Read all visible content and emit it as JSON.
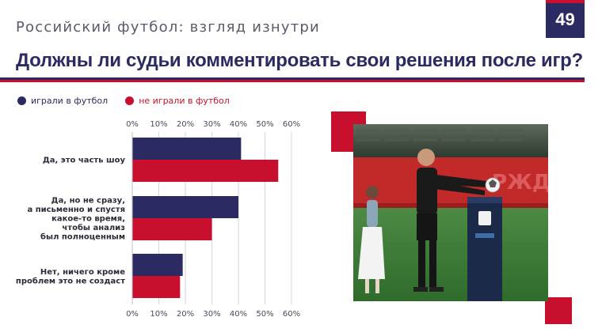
{
  "header": {
    "section_title": "Российский футбол: взгляд изнутри",
    "page_number": "49"
  },
  "title": "Должны ли судьи комментировать свои решения после игр?",
  "colors": {
    "navy": "#2b2a63",
    "red": "#c8102e"
  },
  "photo": {
    "icon": "referee-photo"
  },
  "chart_data": {
    "type": "bar",
    "orientation": "horizontal",
    "categories": [
      [
        "Да, это часть шоу"
      ],
      [
        "Да, но не сразу,",
        "а письменно и спустя",
        "какое-то время,",
        "чтобы анализ",
        "был полноценным"
      ],
      [
        "Нет, ничего кроме",
        "проблем это не создаст"
      ]
    ],
    "series": [
      {
        "name": "играли в футбол",
        "color": "#2b2a63",
        "values": [
          41,
          40,
          19
        ]
      },
      {
        "name": "не играли в футбол",
        "color": "#c8102e",
        "values": [
          55,
          30,
          18
        ]
      }
    ],
    "xlim": [
      0,
      60
    ],
    "ticks": [
      "0%",
      "10%",
      "20%",
      "30%",
      "40%",
      "50%",
      "60%"
    ],
    "grid": true,
    "legend_position": "top-left"
  }
}
